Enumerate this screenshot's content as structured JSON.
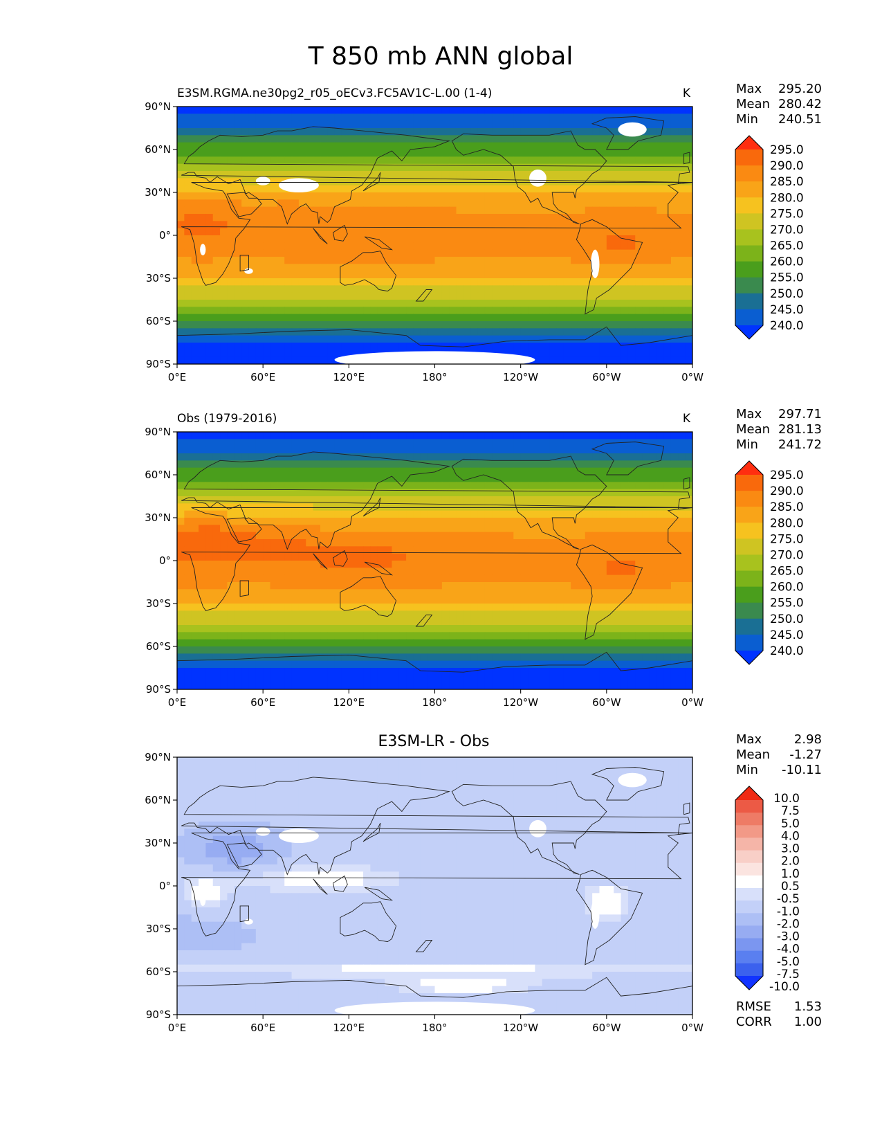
{
  "figure": {
    "title": "T 850 mb ANN global"
  },
  "colors": {
    "abs_levels": [
      "#0033ff",
      "#0a5ed1",
      "#1a6f94",
      "#3a8a4e",
      "#4a9e1c",
      "#7cb31a",
      "#a8c21e",
      "#cfc422",
      "#f6c21f",
      "#f9a418",
      "#fa8a12",
      "#f9690c",
      "#ff2e10"
    ],
    "diff_levels": [
      "#1133ff",
      "#3b61ee",
      "#5a7ff0",
      "#7b96f0",
      "#97acf2",
      "#adbff5",
      "#c3d0f8",
      "#d8e0fa",
      "#ffffff",
      "#fbe4e0",
      "#f8cfc7",
      "#f5b5a8",
      "#f29987",
      "#ee7b66",
      "#ec5a45",
      "#f02a14"
    ],
    "background": "#ffffff",
    "land_line": "#222222"
  },
  "chart_data": [
    {
      "id": "test",
      "type": "heatmap",
      "title": "E3SM.RGMA.ne30pg2_r05_oECv3.FC5AV1C-L.00 (1-4)",
      "units": "K",
      "stats": [
        {
          "label": "Max",
          "value": "295.20"
        },
        {
          "label": "Mean",
          "value": "280.42"
        },
        {
          "label": "Min",
          "value": "240.51"
        }
      ],
      "colorbar": {
        "labels": [
          "295.0",
          "290.0",
          "285.0",
          "280.0",
          "275.0",
          "270.0",
          "265.0",
          "260.0",
          "255.0",
          "250.0",
          "245.0",
          "240.0"
        ]
      },
      "xticks": [
        "0°E",
        "60°E",
        "120°E",
        "180°",
        "120°W",
        "60°W",
        "0°W"
      ],
      "yticks": [
        "90°N",
        "60°N",
        "30°N",
        "0°",
        "30°S",
        "60°S",
        "90°S"
      ],
      "xlim": [
        0,
        360
      ],
      "ylim": [
        -90,
        90
      ],
      "grid": false
    },
    {
      "id": "ref",
      "type": "heatmap",
      "title": "Obs (1979-2016)",
      "units": "K",
      "stats": [
        {
          "label": "Max",
          "value": "297.71"
        },
        {
          "label": "Mean",
          "value": "281.13"
        },
        {
          "label": "Min",
          "value": "241.72"
        }
      ],
      "colorbar": {
        "labels": [
          "295.0",
          "290.0",
          "285.0",
          "280.0",
          "275.0",
          "270.0",
          "265.0",
          "260.0",
          "255.0",
          "250.0",
          "245.0",
          "240.0"
        ]
      },
      "xticks": [
        "0°E",
        "60°E",
        "120°E",
        "180°",
        "120°W",
        "60°W",
        "0°W"
      ],
      "yticks": [
        "90°N",
        "60°N",
        "30°N",
        "0°",
        "30°S",
        "60°S",
        "90°S"
      ],
      "xlim": [
        0,
        360
      ],
      "ylim": [
        -90,
        90
      ],
      "grid": false
    },
    {
      "id": "diff",
      "type": "heatmap",
      "title": "E3SM-LR - Obs",
      "units": "",
      "stats": [
        {
          "label": "Max",
          "value": "2.98"
        },
        {
          "label": "Mean",
          "value": "-1.27"
        },
        {
          "label": "Min",
          "value": "-10.11"
        }
      ],
      "colorbar": {
        "labels": [
          "10.0",
          "7.5",
          "5.0",
          "4.0",
          "3.0",
          "2.0",
          "1.0",
          "0.5",
          "-0.5",
          "-1.0",
          "-2.0",
          "-3.0",
          "-4.0",
          "-5.0",
          "-7.5",
          "-10.0"
        ]
      },
      "extra_stats": [
        {
          "label": "RMSE",
          "value": "1.53"
        },
        {
          "label": "CORR",
          "value": "1.00"
        }
      ],
      "xticks": [
        "0°E",
        "60°E",
        "120°E",
        "180°",
        "120°W",
        "60°W",
        "0°W"
      ],
      "yticks": [
        "90°N",
        "60°N",
        "30°N",
        "0°",
        "30°S",
        "60°S",
        "90°S"
      ],
      "xlim": [
        0,
        360
      ],
      "ylim": [
        -90,
        90
      ],
      "grid": false
    }
  ]
}
